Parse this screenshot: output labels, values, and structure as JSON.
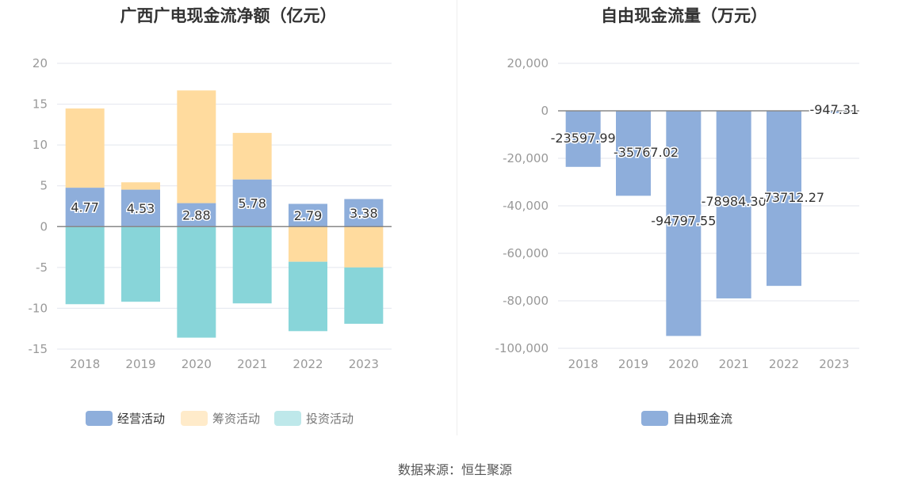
{
  "colors": {
    "operating": "#8eaedb",
    "financing": "#ffdb9e",
    "investing": "#88d5d9",
    "fcf": "#8eaedb",
    "grid": "#e3e6ee",
    "axis_text": "#999999",
    "zero_line": "#888888"
  },
  "source_text": "数据来源：恒生聚源",
  "chart_data": [
    {
      "type": "bar",
      "stacked": true,
      "title": "广西广电现金流净额（亿元）",
      "categories": [
        "2018",
        "2019",
        "2020",
        "2021",
        "2022",
        "2023"
      ],
      "series": [
        {
          "name": "经营活动",
          "values": [
            4.77,
            4.53,
            2.88,
            5.78,
            2.79,
            3.38
          ]
        },
        {
          "name": "筹资活动",
          "values": [
            9.7,
            0.9,
            13.8,
            5.7,
            -4.3,
            -5.0
          ]
        },
        {
          "name": "投资活动",
          "values": [
            -9.5,
            -9.2,
            -13.6,
            -9.4,
            -8.5,
            -6.9
          ]
        }
      ],
      "data_labels": [
        "4.77",
        "4.53",
        "2.88",
        "5.78",
        "2.79",
        "3.38"
      ],
      "y_ticks": [
        "20",
        "15",
        "10",
        "5",
        "0",
        "-5",
        "-10",
        "-15"
      ],
      "ylim": [
        -15,
        20
      ],
      "grid": true,
      "legend_position": "bottom"
    },
    {
      "type": "bar",
      "title": "自由现金流量（万元）",
      "categories": [
        "2018",
        "2019",
        "2020",
        "2021",
        "2022",
        "2023"
      ],
      "series": [
        {
          "name": "自由现金流",
          "values": [
            -23597.99,
            -35767.02,
            -94797.55,
            -78984.3,
            -73712.27,
            -947.31
          ]
        }
      ],
      "data_labels": [
        "-23597.99",
        "-35767.02",
        "-94797.55",
        "-78984.30",
        "-73712.27",
        "-947.31"
      ],
      "y_ticks": [
        "20,000",
        "0",
        "-20,000",
        "-40,000",
        "-60,000",
        "-80,000",
        "-100,000"
      ],
      "ylim": [
        -100000,
        20000
      ],
      "grid": true,
      "legend_position": "bottom"
    }
  ]
}
